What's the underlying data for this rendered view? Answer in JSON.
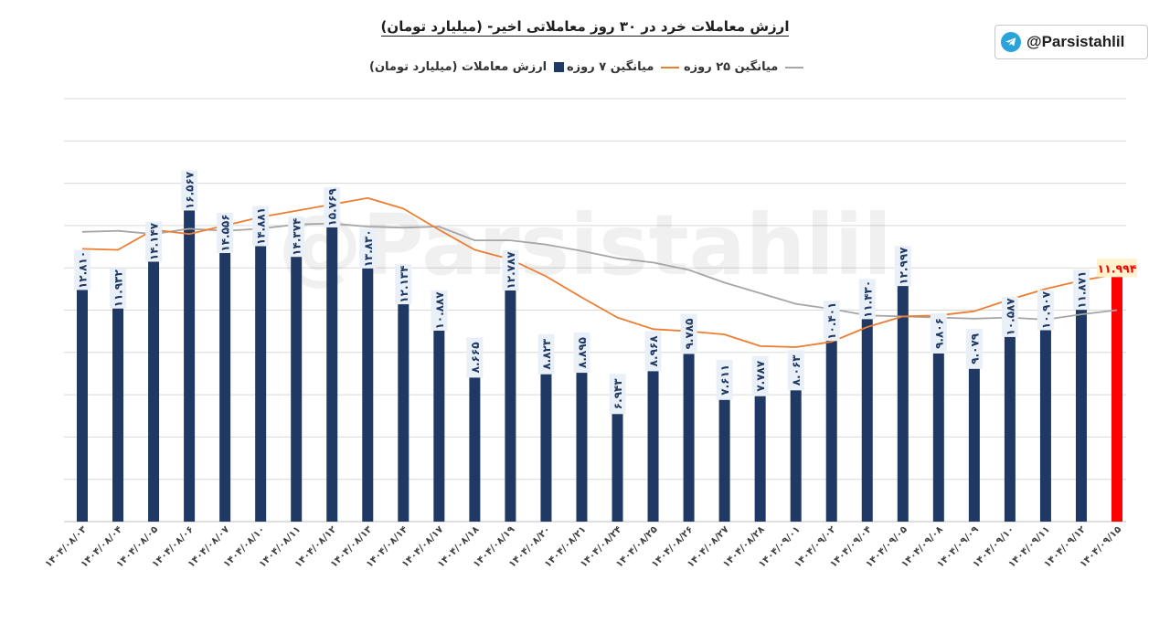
{
  "handle": {
    "text": "@Parsistahlil",
    "icon": "telegram-icon",
    "icon_color": "#2AA3DB"
  },
  "watermark": "@Parsistahlil",
  "colors": {
    "bar": "#1F3864",
    "bar_highlight": "#FF0000",
    "ma7": "#ED7D31",
    "ma25": "#A6A6A6",
    "grid": "#D9D9D9",
    "label_bg": "#EAF0F7",
    "highlight_label_bg": "#FFF2CC"
  },
  "chart_data": {
    "type": "bar",
    "title": "ارزش معاملات خرد در ۳۰ روز معاملاتی اخیر- (میلیارد تومان)",
    "xlabel": "",
    "ylabel": "",
    "ylim": [
      0,
      20000
    ],
    "grid": true,
    "legend_position": "top",
    "categories": [
      "۱۴۰۴/۰۸/۰۳",
      "۱۴۰۴/۰۸/۰۴",
      "۱۴۰۴/۰۸/۰۵",
      "۱۴۰۴/۰۸/۰۶",
      "۱۴۰۴/۰۸/۰۷",
      "۱۴۰۴/۰۸/۱۰",
      "۱۴۰۴/۰۸/۱۱",
      "۱۴۰۴/۰۸/۱۲",
      "۱۴۰۴/۰۸/۱۳",
      "۱۴۰۴/۰۸/۱۴",
      "۱۴۰۴/۰۸/۱۷",
      "۱۴۰۴/۰۸/۱۸",
      "۱۴۰۴/۰۸/۱۹",
      "۱۴۰۴/۰۸/۲۰",
      "۱۴۰۴/۰۸/۲۱",
      "۱۴۰۴/۰۸/۲۴",
      "۱۴۰۴/۰۸/۲۵",
      "۱۴۰۴/۰۸/۲۶",
      "۱۴۰۴/۰۸/۲۷",
      "۱۴۰۴/۰۸/۲۸",
      "۱۴۰۴/۰۹/۰۱",
      "۱۴۰۴/۰۹/۰۲",
      "۱۴۰۴/۰۹/۰۴",
      "۱۴۰۴/۰۹/۰۵",
      "۱۴۰۴/۰۹/۰۸",
      "۱۴۰۴/۰۹/۰۹",
      "۱۴۰۴/۰۹/۱۰",
      "۱۴۰۴/۰۹/۱۱",
      "۱۴۰۴/۰۹/۱۲",
      "۱۴۰۴/۰۹/۱۵"
    ],
    "value_labels": [
      "۱۲.۸۱۰",
      "۱۱.۹۳۲",
      "۱۴.۱۴۷",
      "۱۶.۵۶۷",
      "۱۴.۵۵۶",
      "۱۴.۸۸۱",
      "۱۴.۳۷۴",
      "۱۵.۷۶۹",
      "۱۳.۸۳۰",
      "۱۲.۱۳۴",
      "۱۰.۸۸۷",
      "۸.۶۶۵",
      "۱۲.۷۸۷",
      "۸.۸۲۳",
      "۸.۸۹۵",
      "۶.۹۴۳",
      "۸.۹۶۸",
      "۹.۷۸۵",
      "۷.۶۱۱",
      "۷.۷۸۷",
      "۸.۰۶۳",
      "۱۰.۴۰۱",
      "۱۱.۴۳۰",
      "۱۲.۹۹۷",
      "۹.۸۰۶",
      "۹.۰۷۹",
      "۱۰.۵۸۷",
      "۱۰.۹۰۷",
      "۱۱.۸۷۱",
      "۱۱.۹۹۴"
    ],
    "highlight_index": 29,
    "series": [
      {
        "name": "ارزش معاملات (میلیارد تومان)",
        "type": "bar",
        "values": [
          12810,
          11932,
          14147,
          16567,
          14556,
          14881,
          14374,
          15769,
          13830,
          12134,
          10887,
          8665,
          12787,
          8823,
          8895,
          6943,
          8968,
          9785,
          7611,
          7787,
          8063,
          10401,
          11430,
          12997,
          9806,
          9079,
          10587,
          10907,
          11871,
          11994
        ]
      },
      {
        "name": "میانگین ۷ روزه",
        "type": "line",
        "values": [
          12900,
          12850,
          13800,
          13600,
          14000,
          14400,
          14700,
          15000,
          15300,
          14800,
          13800,
          12850,
          12400,
          11600,
          10600,
          9650,
          9100,
          9000,
          8850,
          8300,
          8250,
          8500,
          9200,
          9700,
          9750,
          9950,
          10500,
          11000,
          11400,
          11700
        ]
      },
      {
        "name": "میانگین ۲۵ روزه",
        "type": "line",
        "values": [
          13700,
          13750,
          13600,
          13850,
          13750,
          13850,
          14050,
          14100,
          13950,
          13900,
          13950,
          13300,
          13300,
          13100,
          12800,
          12450,
          12250,
          11900,
          11300,
          10800,
          10300,
          10050,
          9750,
          9700,
          9650,
          9600,
          9650,
          9550,
          9800,
          10000
        ]
      }
    ]
  }
}
